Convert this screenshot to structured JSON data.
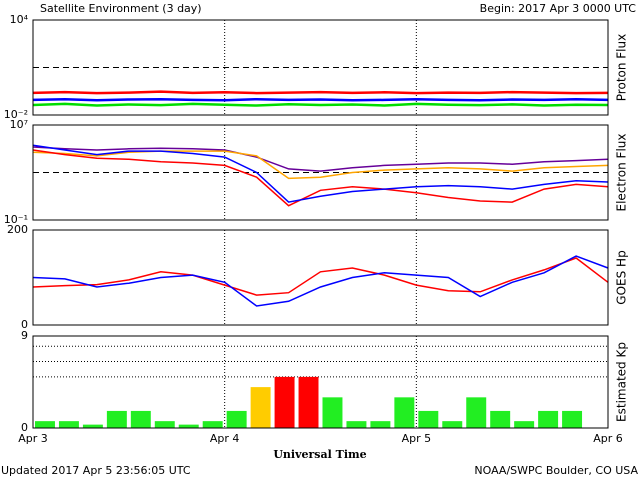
{
  "header": {
    "title": "Satellite Environment (3 day)",
    "begin": "Begin:  2017 Apr 3 0000 UTC",
    "updated": "Updated 2017 Apr  5 23:56:05 UTC",
    "credit": "NOAA/SWPC Boulder, CO USA"
  },
  "xaxis": {
    "label": "Universal Time",
    "xlim": [
      0,
      72
    ],
    "xticks": [
      {
        "value": 0,
        "label": "Apr 3"
      },
      {
        "value": 24,
        "label": "Apr 4"
      },
      {
        "value": 48,
        "label": "Apr 5"
      },
      {
        "value": 72,
        "label": "Apr 6"
      }
    ]
  },
  "chart_data": [
    {
      "type": "line",
      "ylabel": "Proton Flux",
      "log": true,
      "ylim": [
        0.01,
        10000
      ],
      "yticks": [
        {
          "value": 10000,
          "label": "10⁴"
        },
        {
          "value": 0.01,
          "label": "10⁻²"
        }
      ],
      "threshold": 10,
      "x": [
        0,
        4,
        8,
        12,
        16,
        20,
        24,
        28,
        32,
        36,
        40,
        44,
        48,
        52,
        56,
        60,
        64,
        68,
        72
      ],
      "series": [
        {
          "color": "#ff0000",
          "values": [
            0.25,
            0.28,
            0.24,
            0.26,
            0.3,
            0.25,
            0.27,
            0.24,
            0.26,
            0.28,
            0.25,
            0.27,
            0.24,
            0.26,
            0.25,
            0.28,
            0.26,
            0.24,
            0.25
          ]
        },
        {
          "color": "#0000ff",
          "values": [
            0.09,
            0.1,
            0.085,
            0.095,
            0.1,
            0.09,
            0.085,
            0.1,
            0.09,
            0.095,
            0.085,
            0.09,
            0.1,
            0.09,
            0.085,
            0.095,
            0.09,
            0.1,
            0.09
          ]
        },
        {
          "color": "#00dd00",
          "values": [
            0.043,
            0.05,
            0.04,
            0.046,
            0.042,
            0.05,
            0.044,
            0.04,
            0.048,
            0.043,
            0.046,
            0.04,
            0.05,
            0.044,
            0.042,
            0.047,
            0.04,
            0.045,
            0.043
          ]
        }
      ]
    },
    {
      "type": "line",
      "ylabel": "Electron Flux",
      "log": true,
      "ylim": [
        0.1,
        10000000
      ],
      "yticks": [
        {
          "value": 10000000,
          "label": "10⁷"
        },
        {
          "value": 0.1,
          "label": "10⁻¹"
        }
      ],
      "threshold": 1000,
      "x": [
        0,
        4,
        8,
        12,
        16,
        20,
        24,
        28,
        32,
        36,
        40,
        44,
        48,
        52,
        56,
        60,
        64,
        68,
        72
      ],
      "series": [
        {
          "color": "#660099",
          "values": [
            140000.0,
            100000.0,
            79000.0,
            100000.0,
            110000.0,
            100000.0,
            79000.0,
            20000.0,
            2000,
            1300,
            2500,
            4000,
            5000,
            6300,
            6300,
            5000,
            7900,
            10000.0,
            13000.0
          ]
        },
        {
          "color": "#ffa500",
          "values": [
            50000.0,
            40000.0,
            25000.0,
            50000.0,
            63000.0,
            63000.0,
            63000.0,
            25000.0,
            320,
            400,
            1000,
            1600,
            2000,
            2500,
            2000,
            1300,
            2500,
            3200,
            4000
          ]
        },
        {
          "color": "#ff0000",
          "values": [
            79000.0,
            32000.0,
            16000.0,
            13000.0,
            7900,
            6300,
            4000,
            400,
            1.6,
            32,
            63,
            40,
            20,
            7.9,
            4,
            3.2,
            40,
            100,
            63
          ]
        },
        {
          "color": "#0000ff",
          "values": [
            200000.0,
            79000.0,
            32000.0,
            63000.0,
            63000.0,
            40000.0,
            20000.0,
            1000,
            3.2,
            10,
            25,
            40,
            63,
            79,
            63,
            40,
            100,
            200,
            160
          ]
        }
      ]
    },
    {
      "type": "line",
      "ylabel": "GOES Hp",
      "log": false,
      "ylim": [
        0,
        200
      ],
      "yticks": [
        200,
        0
      ],
      "x": [
        0,
        4,
        8,
        12,
        16,
        20,
        24,
        28,
        32,
        36,
        40,
        44,
        48,
        52,
        56,
        60,
        64,
        68,
        72
      ],
      "series": [
        {
          "color": "#ff0000",
          "values": [
            80,
            83,
            85,
            95,
            112,
            105,
            84,
            63,
            68,
            112,
            120,
            105,
            84,
            72,
            70,
            95,
            116,
            141,
            90
          ]
        },
        {
          "color": "#0000ff",
          "values": [
            100,
            97,
            80,
            88,
            100,
            105,
            90,
            40,
            50,
            80,
            100,
            110,
            105,
            100,
            60,
            90,
            110,
            145,
            120
          ]
        }
      ]
    },
    {
      "type": "bar",
      "ylabel": "Estimated Kp",
      "ylim": [
        0,
        9
      ],
      "yticks": [
        9,
        0
      ],
      "grid": [
        8,
        6.5,
        5
      ],
      "x": [
        0,
        3,
        6,
        9,
        12,
        15,
        18,
        21,
        24,
        27,
        30,
        33,
        36,
        39,
        42,
        45,
        48,
        51,
        54,
        57,
        60,
        63,
        66
      ],
      "values": [
        0.67,
        0.67,
        0.33,
        1.67,
        1.67,
        0.67,
        0.33,
        0.67,
        1.67,
        4,
        5,
        5,
        3,
        0.67,
        0.67,
        3,
        1.67,
        0.67,
        3,
        1.67,
        0.67,
        1.67,
        1.67
      ],
      "colors": [
        "#22ee22",
        "#22ee22",
        "#22ee22",
        "#22ee22",
        "#22ee22",
        "#22ee22",
        "#22ee22",
        "#22ee22",
        "#22ee22",
        "#ffcc00",
        "#ff0000",
        "#ff0000",
        "#22ee22",
        "#22ee22",
        "#22ee22",
        "#22ee22",
        "#22ee22",
        "#22ee22",
        "#22ee22",
        "#22ee22",
        "#22ee22",
        "#22ee22",
        "#22ee22"
      ]
    }
  ]
}
